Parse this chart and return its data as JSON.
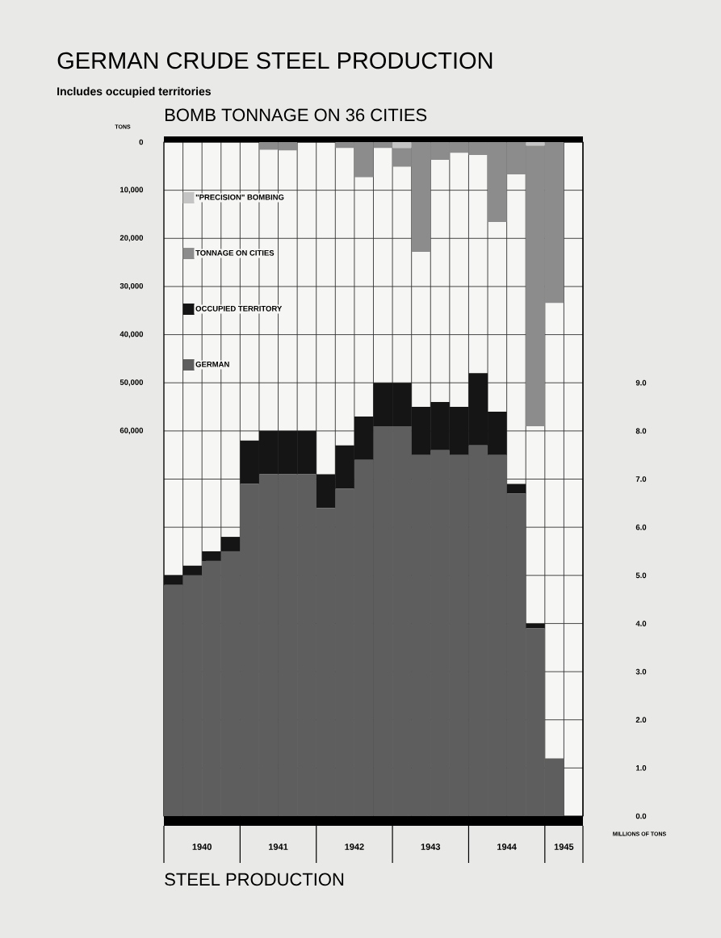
{
  "chart_data": {
    "type": "bar",
    "title": "GERMAN CRUDE STEEL PRODUCTION",
    "subtitle": "Includes occupied territories",
    "ylabel": "TONS",
    "y2label": "MILLIONS OF TONS",
    "annotations": [
      "BOMB TONNAGE ON 36 CITIES",
      "STEEL PRODUCTION"
    ],
    "x": [
      1940.125,
      1940.375,
      1940.625,
      1940.875,
      1941.125,
      1941.375,
      1941.625,
      1941.875,
      1942.125,
      1942.375,
      1942.625,
      1942.875,
      1943.125,
      1943.375,
      1943.625,
      1943.875,
      1944.125,
      1944.375,
      1944.625,
      1944.875,
      1945.125,
      1945.375
    ],
    "xlim": [
      1940,
      1945.5
    ],
    "xticks": [
      {
        "value": 1940.5,
        "label": "1940"
      },
      {
        "value": 1941.5,
        "label": "1941"
      },
      {
        "value": 1942.5,
        "label": "1942"
      },
      {
        "value": 1943.5,
        "label": "1943"
      },
      {
        "value": 1944.5,
        "label": "1944"
      },
      {
        "value": 1945.25,
        "label": "1945"
      }
    ],
    "ylim": [
      140000,
      0
    ],
    "yticks": [
      0,
      {
        "value": 10000,
        "label": "10,000"
      },
      {
        "value": 20000,
        "label": "20,000"
      },
      {
        "value": 30000,
        "label": "30,000"
      },
      {
        "value": 40000,
        "label": "40,000"
      },
      {
        "value": 50000,
        "label": "50,000"
      },
      {
        "value": 60000,
        "label": "60,000"
      },
      {
        "value": 70000,
        "label": null
      },
      {
        "value": 80000,
        "label": null
      },
      {
        "value": 90000,
        "label": null
      },
      {
        "value": 100000,
        "label": null
      },
      {
        "value": 110000,
        "label": null
      },
      {
        "value": 120000,
        "label": null
      },
      {
        "value": 130000,
        "label": null
      }
    ],
    "y2lim": [
      0,
      14
    ],
    "y2ticks": [
      {
        "value": 0,
        "label": "0.0"
      },
      {
        "value": 1,
        "label": "1.0"
      },
      {
        "value": 2,
        "label": "2.0"
      },
      {
        "value": 3,
        "label": "3.0"
      },
      {
        "value": 4,
        "label": "4.0"
      },
      {
        "value": 5,
        "label": "5.0"
      },
      {
        "value": 6,
        "label": "6.0"
      },
      {
        "value": 7,
        "label": "7.0"
      },
      {
        "value": 8,
        "label": "8.0"
      },
      {
        "value": 9,
        "label": "9.0"
      }
    ],
    "stacked": true,
    "grid": true,
    "legend": "top left",
    "series": [
      {
        "name": "\"PRECISION\" BOMBING",
        "color": "#c4c4c4",
        "values": [
          0,
          0,
          0,
          0,
          0,
          0,
          0,
          0,
          0,
          0,
          0,
          0,
          1200,
          0,
          0,
          0,
          0,
          0,
          0,
          700,
          0,
          0
        ]
      },
      {
        "name": "TONNAGE ON CITIES",
        "color": "#8c8c8c",
        "values": [
          0,
          0,
          0,
          0,
          0,
          1600,
          1700,
          0,
          0,
          1200,
          7300,
          1200,
          3900,
          22800,
          3700,
          2200,
          2700,
          16600,
          6700,
          58300,
          33400,
          0
        ]
      },
      {
        "name": "GERMAN",
        "color": "#5e5e5e",
        "axis": "y2",
        "values": [
          4.8,
          5.0,
          5.3,
          5.5,
          6.9,
          7.1,
          7.1,
          7.1,
          6.4,
          6.8,
          7.4,
          8.1,
          8.1,
          7.5,
          7.6,
          7.5,
          7.7,
          7.5,
          6.7,
          3.9,
          1.2,
          0
        ]
      },
      {
        "name": "OCCUPIED TERRITORY",
        "color": "#151515",
        "axis": "y2",
        "values": [
          0.2,
          0.2,
          0.2,
          0.3,
          0.9,
          0.9,
          0.9,
          0.9,
          0.7,
          0.9,
          0.9,
          0.9,
          0.9,
          1.0,
          1.0,
          1.0,
          1.5,
          0.9,
          0.2,
          0.1,
          0,
          0
        ]
      }
    ]
  }
}
